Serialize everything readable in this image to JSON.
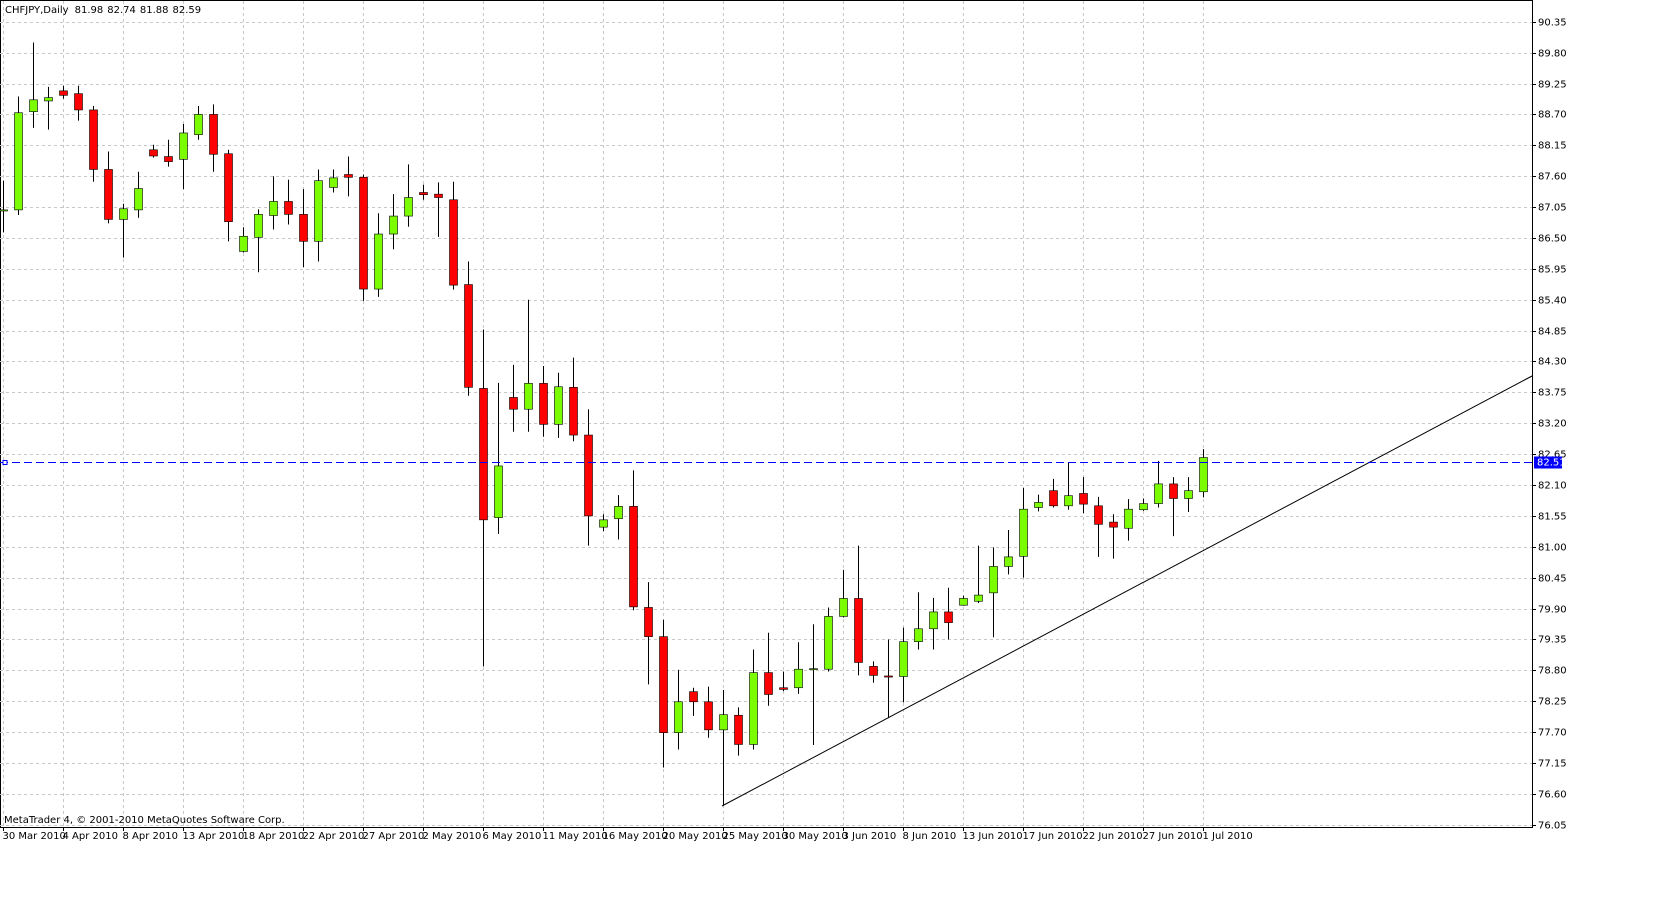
{
  "chart_data": {
    "type": "candlestick",
    "title": "CHFJPY,Daily",
    "footer": "MetaTrader 4, © 2001-2010 MetaQuotes Software Corp.",
    "categories": [
      "30 Mar 2010",
      null,
      null,
      null,
      "4 Apr 2010",
      null,
      null,
      null,
      "8 Apr 2010",
      null,
      null,
      null,
      "13 Apr 2010",
      null,
      null,
      null,
      "18 Apr 2010",
      null,
      null,
      null,
      "22 Apr 2010",
      null,
      null,
      null,
      "27 Apr 2010",
      null,
      null,
      null,
      "2 May 2010",
      null,
      null,
      null,
      "6 May 2010",
      null,
      null,
      null,
      "11 May 2010",
      null,
      null,
      null,
      "16 May 2010",
      null,
      null,
      null,
      "20 May 2010",
      null,
      null,
      null,
      "25 May 2010",
      null,
      null,
      null,
      "30 May 2010",
      null,
      null,
      null,
      "3 Jun 2010",
      null,
      null,
      null,
      "8 Jun 2010",
      null,
      null,
      null,
      "13 Jun 2010",
      null,
      null,
      null,
      "17 Jun 2010",
      null,
      null,
      null,
      "22 Jun 2010",
      null,
      null,
      null,
      "27 Jun 2010",
      null,
      null,
      null,
      "1 Jul 2010"
    ],
    "open": [
      86.98,
      87.0,
      88.75,
      88.94,
      89.12,
      89.07,
      88.78,
      87.72,
      86.83,
      87.0,
      88.07,
      87.95,
      87.9,
      88.34,
      88.7,
      88.0,
      86.26,
      86.51,
      86.9,
      87.15,
      86.92,
      86.44,
      87.4,
      87.63,
      87.58,
      85.59,
      86.57,
      86.89,
      87.31,
      87.28,
      87.18,
      85.67,
      83.82,
      81.52,
      83.66,
      83.45,
      83.91,
      83.18,
      83.84,
      82.99,
      81.35,
      81.5,
      81.72,
      79.92,
      79.4,
      77.69,
      78.42,
      78.24,
      77.74,
      78.0,
      77.48,
      78.76,
      78.49,
      78.49,
      78.82,
      78.82,
      79.76,
      80.08,
      78.87,
      78.7,
      78.69,
      79.31,
      79.54,
      79.84,
      79.96,
      80.03,
      80.18,
      80.65,
      80.83,
      81.7,
      82.0,
      81.73,
      81.95,
      81.73,
      81.44,
      81.33,
      81.66,
      81.77,
      82.12,
      81.86,
      81.98
    ],
    "high": [
      87.52,
      89.02,
      89.98,
      89.19,
      89.21,
      89.21,
      88.85,
      88.04,
      87.11,
      87.68,
      88.16,
      88.25,
      88.53,
      88.85,
      88.88,
      88.07,
      86.69,
      87.01,
      87.6,
      87.54,
      87.37,
      87.72,
      87.72,
      87.95,
      87.63,
      86.94,
      87.28,
      87.81,
      87.45,
      87.49,
      87.5,
      86.08,
      84.87,
      83.92,
      84.24,
      85.4,
      84.22,
      84.1,
      84.37,
      83.45,
      81.58,
      81.92,
      82.36,
      80.37,
      79.7,
      78.81,
      78.49,
      78.51,
      78.45,
      78.14,
      79.17,
      79.47,
      78.78,
      79.3,
      79.62,
      79.92,
      80.59,
      81.02,
      78.96,
      79.35,
      79.56,
      80.19,
      80.09,
      80.27,
      80.13,
      81.02,
      80.99,
      81.3,
      82.05,
      81.93,
      82.21,
      82.51,
      82.24,
      81.89,
      81.58,
      81.85,
      81.86,
      82.53,
      82.24,
      82.24,
      82.74
    ],
    "low": [
      86.6,
      86.91,
      88.46,
      88.43,
      88.98,
      88.59,
      87.5,
      86.76,
      86.15,
      86.86,
      87.93,
      87.77,
      87.37,
      88.25,
      87.68,
      86.44,
      86.24,
      85.89,
      86.65,
      86.74,
      85.98,
      86.08,
      87.31,
      87.24,
      85.38,
      85.45,
      86.3,
      86.7,
      87.18,
      86.52,
      85.58,
      83.69,
      78.87,
      81.23,
      83.05,
      83.05,
      82.96,
      82.94,
      82.88,
      81.02,
      81.28,
      81.13,
      79.87,
      78.55,
      77.07,
      77.39,
      77.99,
      77.6,
      76.4,
      77.28,
      77.39,
      78.17,
      78.43,
      78.38,
      77.47,
      78.78,
      79.74,
      78.71,
      78.58,
      77.96,
      78.23,
      79.17,
      79.17,
      79.35,
      79.95,
      80.0,
      79.39,
      80.51,
      80.45,
      81.63,
      81.7,
      81.66,
      81.6,
      80.82,
      80.79,
      81.11,
      81.64,
      81.7,
      81.19,
      81.62,
      81.88
    ],
    "close": [
      87.0,
      88.73,
      88.96,
      89.0,
      89.04,
      88.78,
      87.72,
      86.83,
      87.02,
      87.38,
      87.96,
      87.86,
      88.37,
      88.7,
      87.99,
      86.79,
      86.53,
      86.92,
      87.15,
      86.92,
      86.44,
      87.52,
      87.57,
      87.58,
      85.59,
      86.57,
      86.89,
      87.22,
      87.27,
      87.22,
      85.66,
      83.84,
      81.48,
      82.44,
      83.45,
      83.91,
      83.18,
      83.85,
      82.99,
      81.55,
      81.48,
      81.72,
      79.93,
      79.4,
      77.69,
      78.24,
      78.24,
      77.74,
      78.01,
      77.48,
      78.76,
      78.37,
      78.46,
      78.82,
      78.83,
      79.76,
      80.08,
      78.94,
      78.71,
      78.68,
      79.31,
      79.54,
      79.84,
      79.65,
      80.08,
      80.14,
      80.65,
      80.82,
      81.67,
      81.79,
      81.73,
      81.91,
      81.76,
      81.4,
      81.35,
      81.67,
      81.77,
      82.12,
      81.86,
      82.0,
      82.59
    ],
    "up_color": "#7cfc00",
    "down_color": "#ff0000",
    "bid": 82.51,
    "bid_color": "#0000ff",
    "ylim": [
      76.01,
      90.72
    ],
    "yticks": [
      90.35,
      {
        "value": 89.8,
        "label": "89.80"
      },
      89.25,
      {
        "value": 88.7,
        "label": "88.70"
      },
      88.15,
      {
        "value": 87.6,
        "label": "87.60"
      },
      87.05,
      {
        "value": 86.5,
        "label": "86.50"
      },
      85.95,
      {
        "value": 85.4,
        "label": "85.40"
      },
      84.85,
      {
        "value": 84.3,
        "label": "84.30"
      },
      83.75,
      {
        "value": 83.2,
        "label": "83.20"
      },
      82.65,
      {
        "value": 82.1,
        "label": "82.10"
      },
      81.55,
      {
        "value": 81.0,
        "label": "81.00"
      },
      80.45,
      {
        "value": 79.9,
        "label": "79.90"
      },
      79.35,
      {
        "value": 78.8,
        "label": "78.80"
      },
      78.25,
      {
        "value": 77.7,
        "label": "77.70"
      },
      77.15,
      {
        "value": 76.6,
        "label": "76.60"
      },
      76.05
    ],
    "grid": true
  }
}
